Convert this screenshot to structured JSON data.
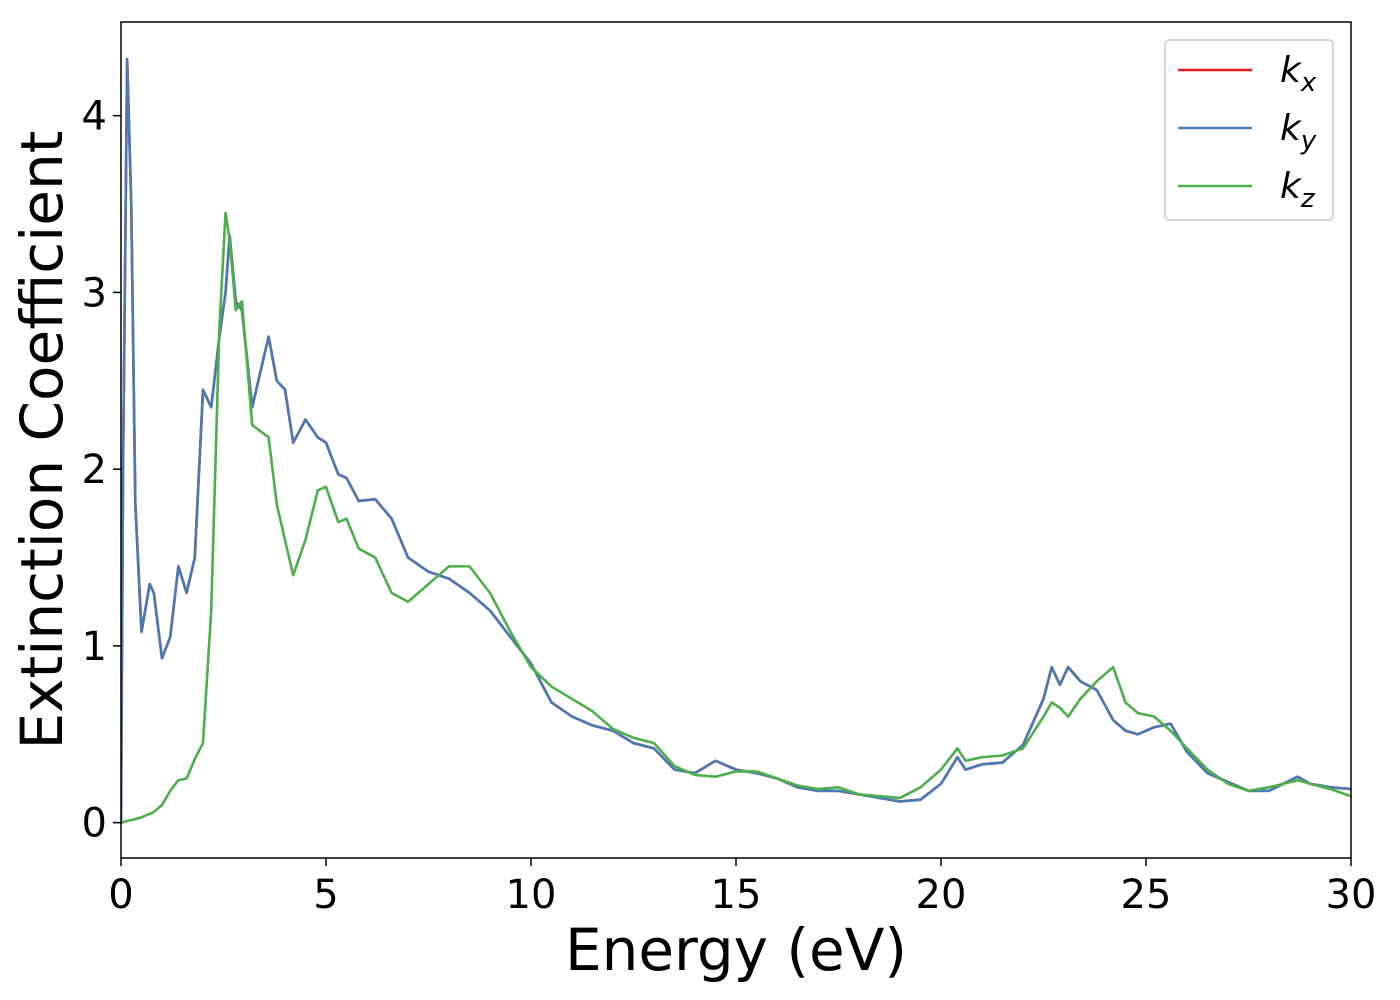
{
  "chart_data": {
    "type": "line",
    "xlabel": "Energy (eV)",
    "ylabel": "Extinction Coefficient",
    "xlim": [
      0,
      30
    ],
    "xticks": [
      0,
      5,
      10,
      15,
      20,
      25,
      30
    ],
    "ylim": [
      -0.2,
      4.53
    ],
    "yticks": [
      0,
      1,
      2,
      3,
      4
    ],
    "legend": "upper right",
    "x": [
      0,
      0.05,
      0.15,
      0.25,
      0.35,
      0.5,
      0.7,
      0.8,
      1,
      1.2,
      1.4,
      1.6,
      1.8,
      2,
      2.2,
      2.4,
      2.55,
      2.65,
      2.8,
      2.95,
      3.2,
      3.6,
      3.8,
      4,
      4.2,
      4.5,
      4.8,
      5,
      5.3,
      5.5,
      5.8,
      6.2,
      6.6,
      7,
      7.5,
      8,
      8.5,
      9,
      9.5,
      10,
      10.5,
      11,
      11.5,
      12,
      12.5,
      13,
      13.5,
      14,
      14.5,
      15,
      15.5,
      16,
      16.5,
      17,
      17.5,
      18,
      18.5,
      19,
      19.5,
      20,
      20.4,
      20.6,
      21,
      21.5,
      22,
      22.5,
      22.7,
      22.9,
      23.1,
      23.4,
      23.8,
      24.2,
      24.5,
      24.8,
      25.2,
      25.6,
      26,
      26.5,
      27,
      27.5,
      28,
      28.7,
      29,
      29.5,
      30
    ],
    "series": [
      {
        "name": "k_x",
        "color": "#e41a1c",
        "values": [
          0,
          2.0,
          4.32,
          3.5,
          1.8,
          1.08,
          1.35,
          1.3,
          0.93,
          1.05,
          1.45,
          1.3,
          1.5,
          2.45,
          2.35,
          2.75,
          3.0,
          3.32,
          2.95,
          2.9,
          2.35,
          2.75,
          2.5,
          2.45,
          2.15,
          2.28,
          2.18,
          2.15,
          1.97,
          1.95,
          1.82,
          1.83,
          1.72,
          1.5,
          1.42,
          1.38,
          1.3,
          1.2,
          1.05,
          0.9,
          0.68,
          0.6,
          0.55,
          0.52,
          0.45,
          0.42,
          0.3,
          0.28,
          0.35,
          0.3,
          0.28,
          0.25,
          0.2,
          0.18,
          0.18,
          0.16,
          0.14,
          0.12,
          0.13,
          0.22,
          0.37,
          0.3,
          0.33,
          0.34,
          0.44,
          0.7,
          0.88,
          0.78,
          0.88,
          0.8,
          0.75,
          0.58,
          0.52,
          0.5,
          0.54,
          0.56,
          0.4,
          0.28,
          0.23,
          0.18,
          0.18,
          0.26,
          0.22,
          0.2,
          0.19
        ]
      },
      {
        "name": "k_y",
        "color": "#4a7ab5",
        "values": [
          0,
          2.0,
          4.32,
          3.5,
          1.8,
          1.08,
          1.35,
          1.3,
          0.93,
          1.05,
          1.45,
          1.3,
          1.5,
          2.45,
          2.35,
          2.75,
          3.0,
          3.32,
          2.95,
          2.9,
          2.35,
          2.75,
          2.5,
          2.45,
          2.15,
          2.28,
          2.18,
          2.15,
          1.97,
          1.95,
          1.82,
          1.83,
          1.72,
          1.5,
          1.42,
          1.38,
          1.3,
          1.2,
          1.05,
          0.9,
          0.68,
          0.6,
          0.55,
          0.52,
          0.45,
          0.42,
          0.3,
          0.28,
          0.35,
          0.3,
          0.28,
          0.25,
          0.2,
          0.18,
          0.18,
          0.16,
          0.14,
          0.12,
          0.13,
          0.22,
          0.37,
          0.3,
          0.33,
          0.34,
          0.44,
          0.7,
          0.88,
          0.78,
          0.88,
          0.8,
          0.75,
          0.58,
          0.52,
          0.5,
          0.54,
          0.56,
          0.4,
          0.28,
          0.23,
          0.18,
          0.18,
          0.26,
          0.22,
          0.2,
          0.19
        ]
      },
      {
        "name": "k_z",
        "color": "#4daf4a",
        "values": [
          0,
          0.002,
          0.01,
          0.015,
          0.02,
          0.03,
          0.05,
          0.06,
          0.1,
          0.18,
          0.24,
          0.25,
          0.36,
          0.45,
          1.2,
          2.8,
          3.45,
          3.3,
          2.9,
          2.95,
          2.25,
          2.18,
          1.8,
          1.6,
          1.4,
          1.6,
          1.88,
          1.9,
          1.7,
          1.72,
          1.55,
          1.5,
          1.3,
          1.25,
          1.35,
          1.45,
          1.45,
          1.3,
          1.08,
          0.88,
          0.77,
          0.7,
          0.63,
          0.53,
          0.48,
          0.45,
          0.32,
          0.27,
          0.26,
          0.29,
          0.29,
          0.25,
          0.21,
          0.19,
          0.2,
          0.16,
          0.15,
          0.14,
          0.2,
          0.3,
          0.42,
          0.35,
          0.37,
          0.38,
          0.42,
          0.6,
          0.68,
          0.65,
          0.6,
          0.7,
          0.8,
          0.88,
          0.68,
          0.62,
          0.6,
          0.52,
          0.42,
          0.3,
          0.22,
          0.18,
          0.2,
          0.24,
          0.22,
          0.19,
          0.15
        ]
      }
    ]
  }
}
